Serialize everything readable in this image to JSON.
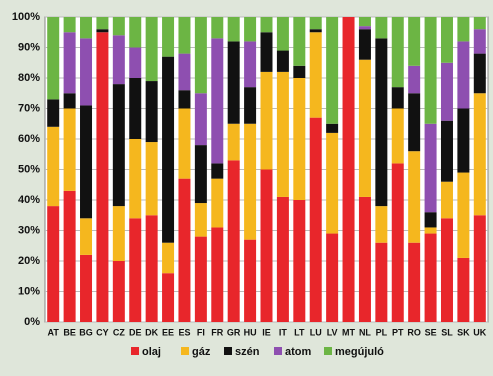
{
  "chart_data": {
    "type": "stacked_bar",
    "categories": [
      "AT",
      "BE",
      "BG",
      "CY",
      "CZ",
      "DE",
      "DK",
      "EE",
      "ES",
      "FI",
      "FR",
      "GR",
      "HU",
      "IE",
      "IT",
      "LT",
      "LU",
      "LV",
      "MT",
      "NL",
      "PL",
      "PT",
      "RO",
      "SE",
      "SL",
      "SK",
      "UK"
    ],
    "series": [
      {
        "name": "olaj",
        "color": "#e8262b",
        "values": [
          38,
          43,
          22,
          95,
          20,
          34,
          35,
          16,
          47,
          28,
          31,
          53,
          27,
          50,
          41,
          40,
          67,
          29,
          100,
          41,
          26,
          52,
          26,
          29,
          34,
          21,
          35
        ]
      },
      {
        "name": "gáz",
        "color": "#f5b71e",
        "values": [
          26,
          27,
          12,
          0,
          18,
          26,
          24,
          10,
          23,
          11,
          16,
          12,
          38,
          32,
          41,
          40,
          28,
          33,
          0,
          45,
          12,
          18,
          30,
          2,
          12,
          28,
          40
        ]
      },
      {
        "name": "szén",
        "color": "#111111",
        "values": [
          9,
          5,
          37,
          1,
          40,
          20,
          20,
          61,
          6,
          19,
          5,
          27,
          12,
          13,
          7,
          4,
          1,
          3,
          0,
          10,
          55,
          7,
          19,
          5,
          20,
          21,
          13
        ]
      },
      {
        "name": "atom",
        "color": "#8e4fb0",
        "values": [
          0,
          20,
          22,
          0,
          16,
          10,
          0,
          0,
          12,
          17,
          41,
          0,
          15,
          0,
          0,
          0,
          0,
          0,
          0,
          1,
          0,
          0,
          9,
          29,
          19,
          22,
          8
        ]
      },
      {
        "name": "megújuló",
        "color": "#6cb544",
        "values": [
          27,
          5,
          7,
          4,
          6,
          10,
          21,
          13,
          12,
          25,
          7,
          8,
          8,
          5,
          11,
          16,
          4,
          35,
          0,
          3,
          7,
          23,
          16,
          35,
          15,
          8,
          4
        ]
      }
    ],
    "ylim": [
      0,
      100
    ],
    "yticks": [
      {
        "value": 0,
        "label": "0%"
      },
      {
        "value": 10,
        "label": "10%"
      },
      {
        "value": 20,
        "label": "20%"
      },
      {
        "value": 30,
        "label": "30%"
      },
      {
        "value": 40,
        "label": "40%"
      },
      {
        "value": 50,
        "label": "50%"
      },
      {
        "value": 60,
        "label": "60%"
      },
      {
        "value": 70,
        "label": "70%"
      },
      {
        "value": 80,
        "label": "80%"
      },
      {
        "value": 90,
        "label": "90%"
      },
      {
        "value": 100,
        "label": "100%"
      }
    ],
    "grid": true,
    "legend": "bottom"
  }
}
